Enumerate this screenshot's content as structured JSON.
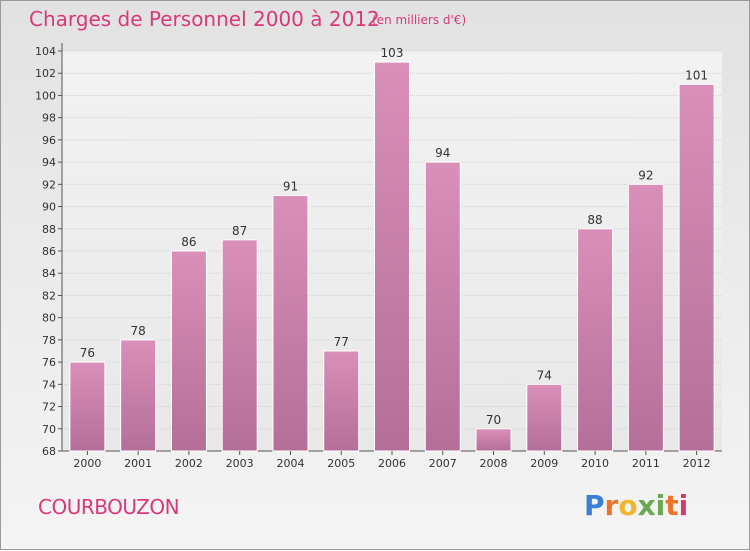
{
  "title": "Charges de Personnel 2000 à 2012",
  "subtitle": "(en milliers d'€)",
  "commune": "COURBOUZON",
  "logo_text": "Proxiti",
  "colors": {
    "bar": "#d98fb8",
    "bar_dark": "#b46f98",
    "text_accent": "#d7397a"
  },
  "chart_data": {
    "type": "bar",
    "title": "Charges de Personnel 2000 à 2012",
    "subtitle": "(en milliers d'€)",
    "categories": [
      "2000",
      "2001",
      "2002",
      "2003",
      "2004",
      "2005",
      "2006",
      "2007",
      "2008",
      "2009",
      "2010",
      "2011",
      "2012"
    ],
    "values": [
      76,
      78,
      86,
      87,
      91,
      77,
      103,
      94,
      70,
      74,
      88,
      92,
      101
    ],
    "ylim": [
      68,
      104
    ],
    "yticks": [
      68,
      70,
      72,
      74,
      76,
      78,
      80,
      82,
      84,
      86,
      88,
      90,
      92,
      94,
      96,
      98,
      100,
      102,
      104
    ],
    "grid": true,
    "xlabel": "",
    "ylabel": ""
  }
}
